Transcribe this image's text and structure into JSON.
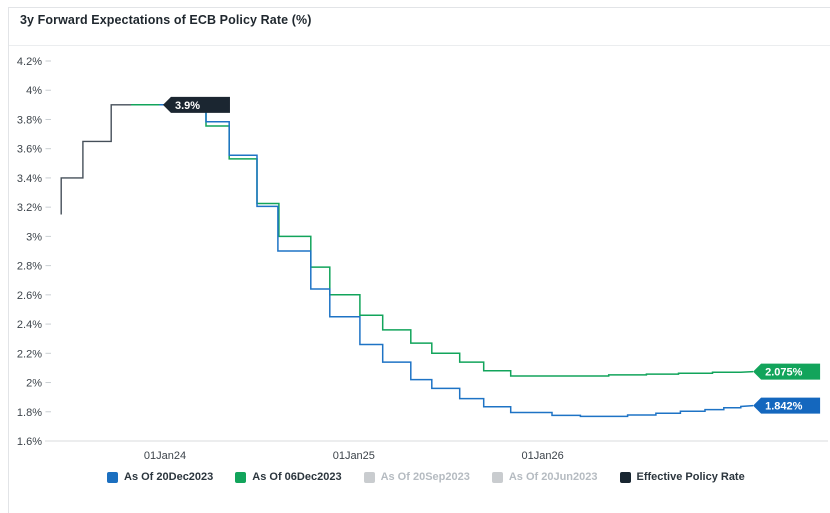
{
  "card": {
    "title": "3y Forward Expectations of ECB Policy Rate (%)"
  },
  "chart_data": {
    "type": "step-line",
    "title": "3y Forward Expectations of ECB Policy Rate (%)",
    "y_unit": "%",
    "ylim": [
      1.6,
      4.2
    ],
    "xlim": [
      2023.38,
      2027.48
    ],
    "grid": false,
    "y_ticks": [
      {
        "value": 4.2,
        "label": "4.2%"
      },
      {
        "value": 4.0,
        "label": "4%"
      },
      {
        "value": 3.8,
        "label": "3.8%"
      },
      {
        "value": 3.6,
        "label": "3.6%"
      },
      {
        "value": 3.4,
        "label": "3.4%"
      },
      {
        "value": 3.2,
        "label": "3.2%"
      },
      {
        "value": 3.0,
        "label": "3%"
      },
      {
        "value": 2.8,
        "label": "2.8%"
      },
      {
        "value": 2.6,
        "label": "2.6%"
      },
      {
        "value": 2.4,
        "label": "2.4%"
      },
      {
        "value": 2.2,
        "label": "2.2%"
      },
      {
        "value": 2.0,
        "label": "2%"
      },
      {
        "value": 1.8,
        "label": "1.8%"
      },
      {
        "value": 1.6,
        "label": "1.6%"
      }
    ],
    "x_ticks": [
      {
        "value": 2024.0,
        "label": "01Jan24"
      },
      {
        "value": 2025.0,
        "label": "01Jan25"
      },
      {
        "value": 2026.0,
        "label": "01Jan26"
      }
    ],
    "series": [
      {
        "name": "Effective Policy Rate",
        "color": "#454f59",
        "width": 1.4,
        "points": [
          [
            2023.45,
            3.15
          ],
          [
            2023.45,
            3.4
          ],
          [
            2023.565,
            3.4
          ],
          [
            2023.565,
            3.65
          ],
          [
            2023.715,
            3.65
          ],
          [
            2023.715,
            3.9
          ],
          [
            2024.02,
            3.9
          ]
        ]
      },
      {
        "name": "As Of 06Dec2023",
        "color": "#12a45b",
        "width": 1.5,
        "points": [
          [
            2023.82,
            3.9
          ],
          [
            2024.217,
            3.9
          ],
          [
            2024.217,
            3.755
          ],
          [
            2024.34,
            3.755
          ],
          [
            2024.34,
            3.53
          ],
          [
            2024.487,
            3.53
          ],
          [
            2024.487,
            3.225
          ],
          [
            2024.603,
            3.225
          ],
          [
            2024.603,
            3.0
          ],
          [
            2024.772,
            3.0
          ],
          [
            2024.772,
            2.79
          ],
          [
            2024.873,
            2.79
          ],
          [
            2024.873,
            2.6
          ],
          [
            2025.032,
            2.6
          ],
          [
            2025.032,
            2.46
          ],
          [
            2025.153,
            2.46
          ],
          [
            2025.153,
            2.36
          ],
          [
            2025.302,
            2.36
          ],
          [
            2025.302,
            2.27
          ],
          [
            2025.413,
            2.27
          ],
          [
            2025.413,
            2.2
          ],
          [
            2025.561,
            2.2
          ],
          [
            2025.561,
            2.14
          ],
          [
            2025.688,
            2.14
          ],
          [
            2025.688,
            2.08
          ],
          [
            2025.831,
            2.08
          ],
          [
            2025.831,
            2.045
          ],
          [
            2026.35,
            2.045
          ],
          [
            2026.35,
            2.052
          ],
          [
            2026.55,
            2.052
          ],
          [
            2026.55,
            2.058
          ],
          [
            2026.72,
            2.058
          ],
          [
            2026.72,
            2.064
          ],
          [
            2026.9,
            2.064
          ],
          [
            2026.9,
            2.07
          ],
          [
            2027.05,
            2.07
          ],
          [
            2027.115,
            2.075
          ]
        ]
      },
      {
        "name": "As Of 20Dec2023",
        "color": "#1e73c5",
        "width": 1.5,
        "points": [
          [
            2023.97,
            3.9
          ],
          [
            2024.217,
            3.9
          ],
          [
            2024.217,
            3.785
          ],
          [
            2024.34,
            3.785
          ],
          [
            2024.34,
            3.555
          ],
          [
            2024.487,
            3.555
          ],
          [
            2024.487,
            3.205
          ],
          [
            2024.598,
            3.205
          ],
          [
            2024.598,
            2.9
          ],
          [
            2024.772,
            2.9
          ],
          [
            2024.772,
            2.64
          ],
          [
            2024.873,
            2.64
          ],
          [
            2024.873,
            2.45
          ],
          [
            2025.032,
            2.45
          ],
          [
            2025.032,
            2.26
          ],
          [
            2025.153,
            2.26
          ],
          [
            2025.153,
            2.14
          ],
          [
            2025.302,
            2.14
          ],
          [
            2025.302,
            2.02
          ],
          [
            2025.413,
            2.02
          ],
          [
            2025.413,
            1.96
          ],
          [
            2025.561,
            1.96
          ],
          [
            2025.561,
            1.89
          ],
          [
            2025.688,
            1.89
          ],
          [
            2025.688,
            1.835
          ],
          [
            2025.831,
            1.835
          ],
          [
            2025.831,
            1.795
          ],
          [
            2026.05,
            1.795
          ],
          [
            2026.05,
            1.775
          ],
          [
            2026.2,
            1.775
          ],
          [
            2026.2,
            1.768
          ],
          [
            2026.45,
            1.768
          ],
          [
            2026.45,
            1.778
          ],
          [
            2026.6,
            1.778
          ],
          [
            2026.6,
            1.79
          ],
          [
            2026.73,
            1.79
          ],
          [
            2026.73,
            1.803
          ],
          [
            2026.86,
            1.803
          ],
          [
            2026.86,
            1.815
          ],
          [
            2026.96,
            1.815
          ],
          [
            2026.96,
            1.827
          ],
          [
            2027.05,
            1.827
          ],
          [
            2027.05,
            1.836
          ],
          [
            2027.115,
            1.842
          ]
        ]
      }
    ],
    "annotations": [
      {
        "label": "3.9%",
        "t": 2023.989,
        "value": 3.9,
        "color": "#1b2631"
      },
      {
        "label": "2.075%",
        "t": 2027.115,
        "value": 2.075,
        "color": "#12a45b"
      },
      {
        "label": "1.842%",
        "t": 2027.115,
        "value": 1.842,
        "color": "#1467be"
      }
    ],
    "legend": [
      {
        "label": "As Of 20Dec2023",
        "color": "#1b6fc0",
        "disabled": false
      },
      {
        "label": "As Of 06Dec2023",
        "color": "#12a45b",
        "disabled": false
      },
      {
        "label": "As Of 20Sep2023",
        "color": "#c9cccf",
        "disabled": true
      },
      {
        "label": "As Of 20Jun2023",
        "color": "#c9cccf",
        "disabled": true
      },
      {
        "label": "Effective Policy Rate",
        "color": "#182530",
        "disabled": false
      }
    ],
    "axis_colors": {
      "tick_mark": "#c9ced2",
      "axis_line": "#d8dbde"
    }
  }
}
